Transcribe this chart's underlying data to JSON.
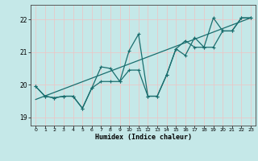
{
  "xlabel": "Humidex (Indice chaleur)",
  "background_color": "#c5e8e8",
  "grid_color": "#e8c8c8",
  "line_color": "#1a6e6e",
  "xlim": [
    -0.5,
    23.5
  ],
  "ylim": [
    18.75,
    22.45
  ],
  "yticks": [
    19,
    20,
    21,
    22
  ],
  "xticks": [
    0,
    1,
    2,
    3,
    4,
    5,
    6,
    7,
    8,
    9,
    10,
    11,
    12,
    13,
    14,
    15,
    16,
    17,
    18,
    19,
    20,
    21,
    22,
    23
  ],
  "line1_x": [
    0,
    1,
    2,
    3,
    4,
    5,
    6,
    7,
    8,
    9,
    10,
    11,
    12,
    13,
    14,
    15,
    16,
    17,
    18,
    19,
    20,
    21,
    22,
    23
  ],
  "line1_y": [
    19.95,
    19.65,
    19.6,
    19.65,
    19.65,
    19.28,
    19.9,
    20.55,
    20.5,
    20.1,
    21.05,
    21.55,
    19.65,
    19.65,
    20.3,
    21.1,
    20.9,
    21.45,
    21.15,
    22.05,
    21.65,
    21.65,
    22.05,
    22.05
  ],
  "line2_x": [
    0,
    1,
    2,
    3,
    4,
    5,
    6,
    7,
    8,
    9,
    10,
    11,
    12,
    13,
    14,
    15,
    16,
    17,
    18,
    19,
    20,
    21,
    22,
    23
  ],
  "line2_y": [
    19.95,
    19.65,
    19.6,
    19.65,
    19.65,
    19.28,
    19.9,
    20.1,
    20.1,
    20.1,
    20.45,
    20.45,
    19.65,
    19.65,
    20.3,
    21.1,
    21.35,
    21.15,
    21.15,
    21.15,
    21.65,
    21.65,
    22.05,
    22.05
  ],
  "trend_x": [
    0,
    23
  ],
  "trend_y": [
    19.55,
    22.05
  ]
}
